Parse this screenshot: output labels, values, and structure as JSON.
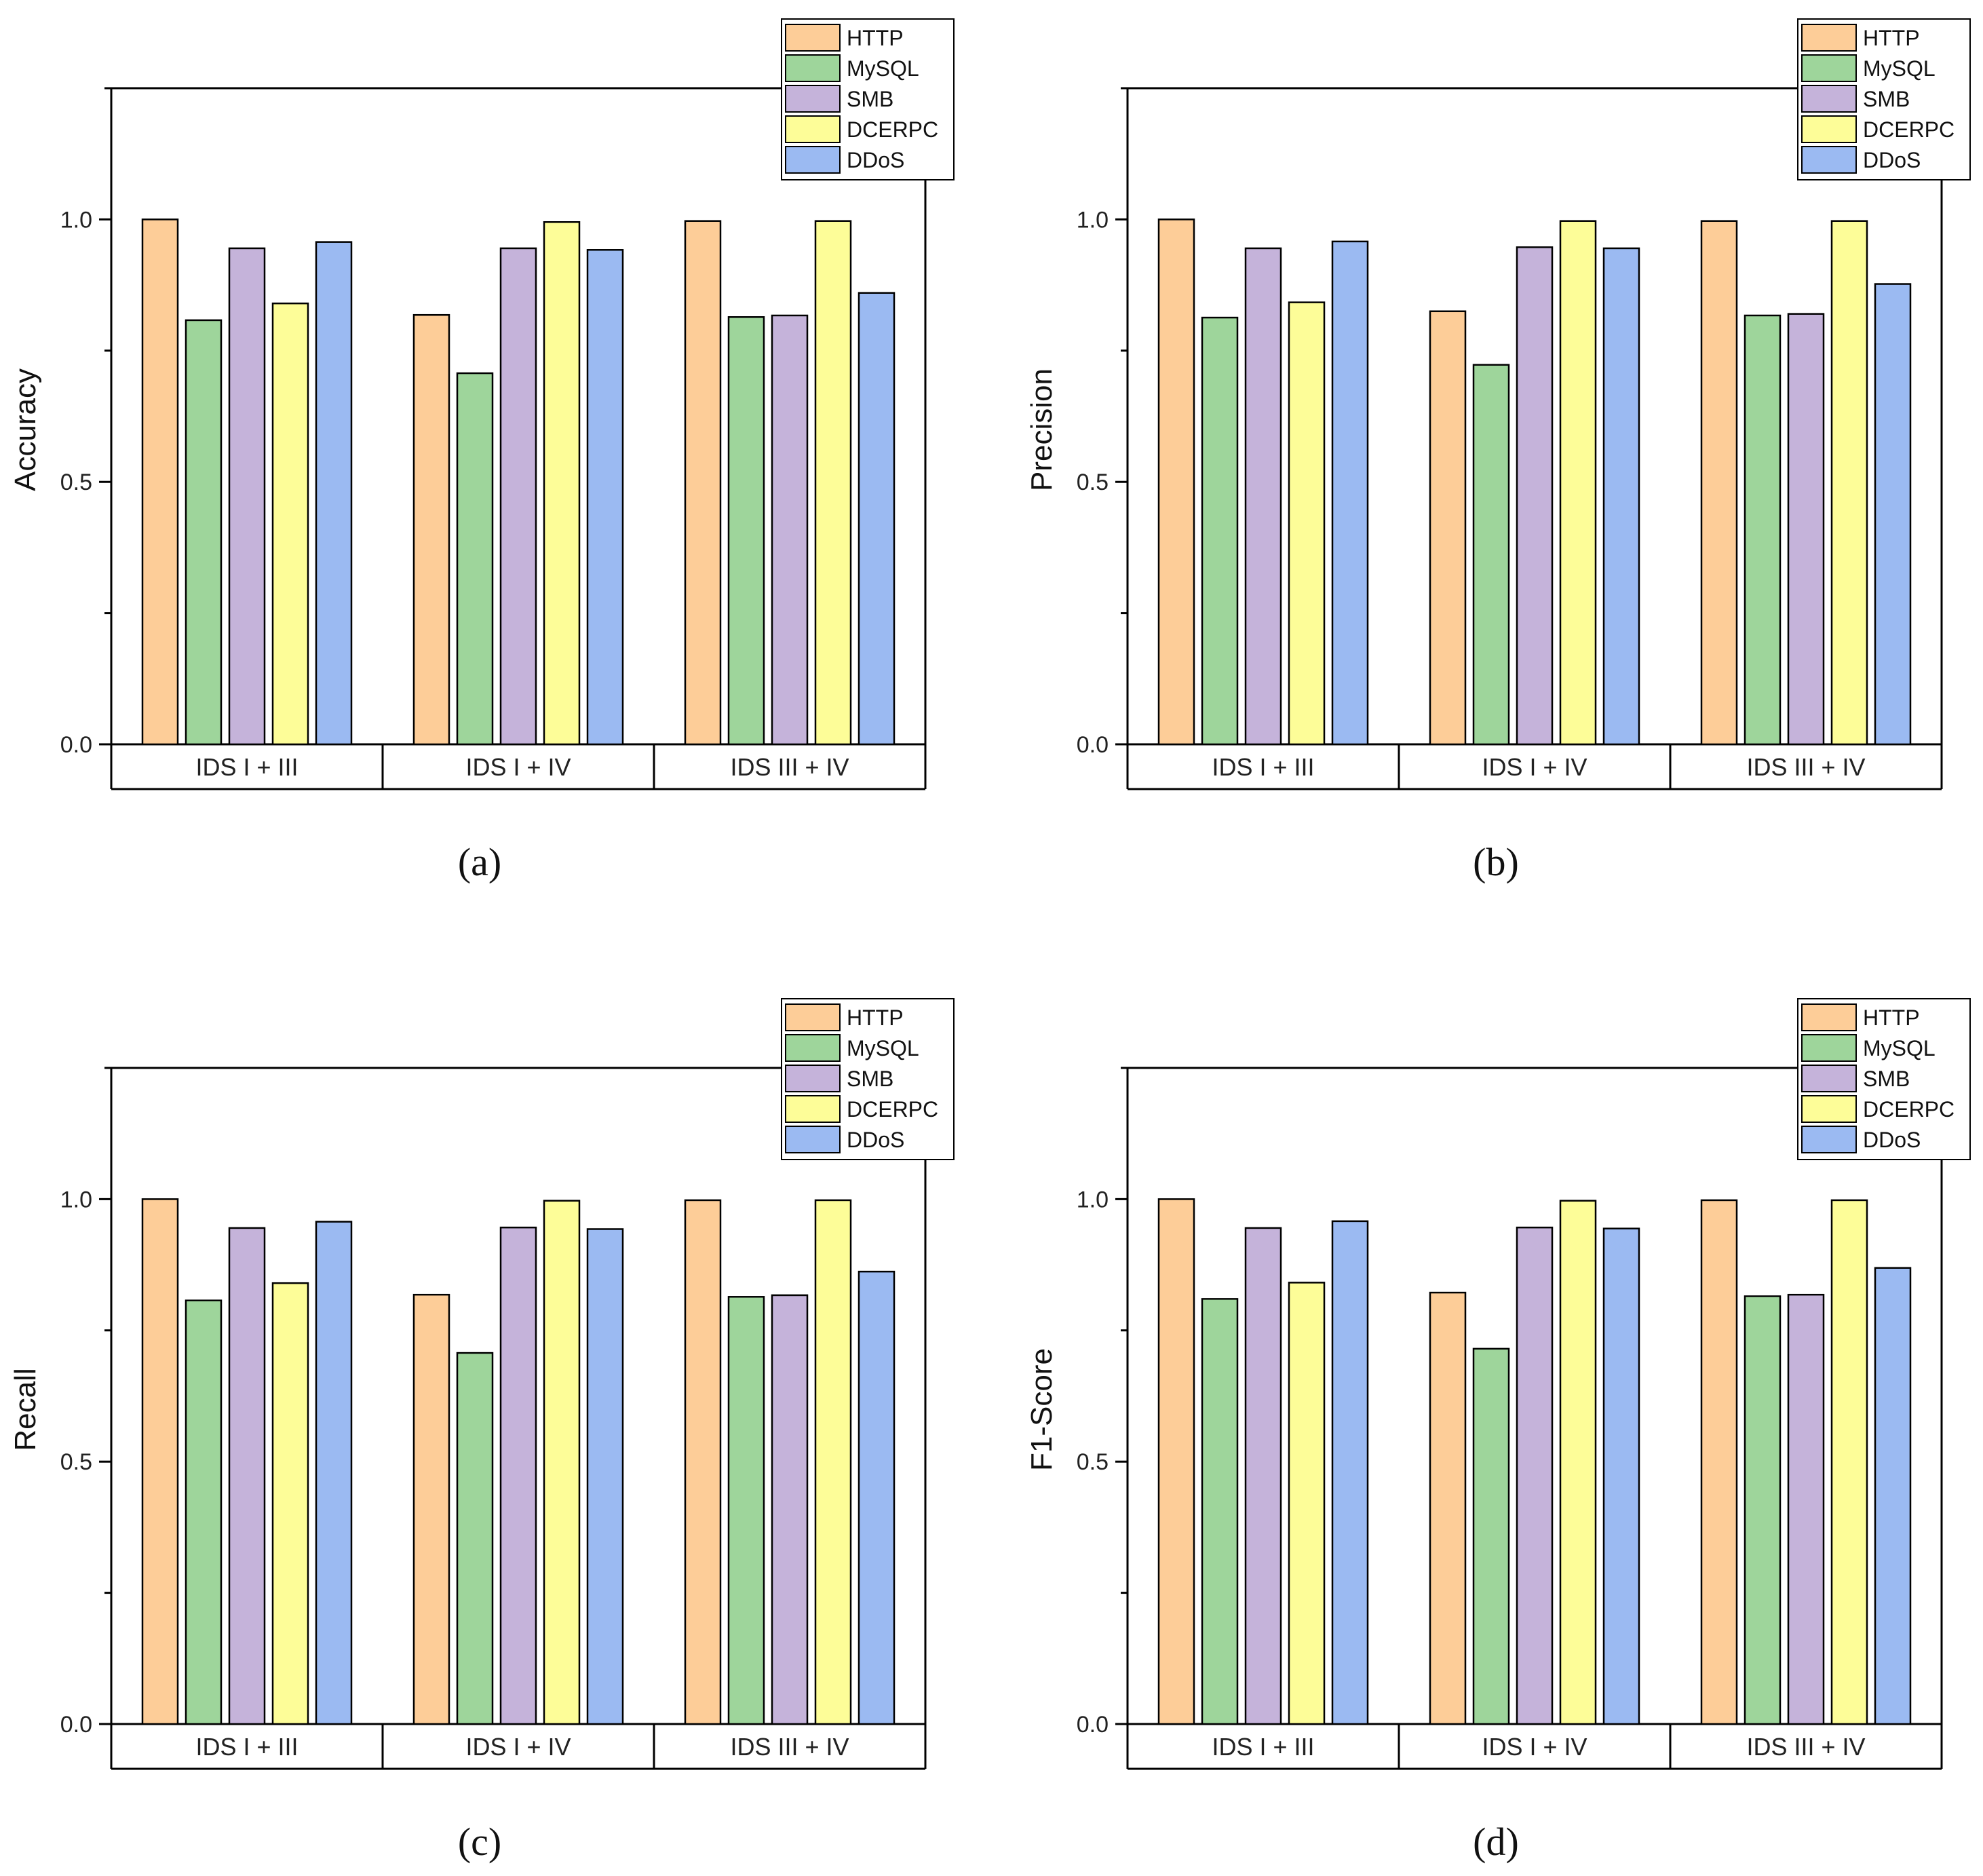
{
  "chart_data": [
    {
      "type": "bar",
      "caption": "(a)",
      "ylabel": "Accuracy",
      "ylim": [
        0,
        1.25
      ],
      "yticks": [
        "0.0",
        "0.5",
        "1.0"
      ],
      "categories": [
        "IDS I + III",
        "IDS I + IV",
        "IDS III + IV"
      ],
      "series": [
        {
          "name": "HTTP",
          "values": [
            1.0,
            0.818,
            0.997
          ]
        },
        {
          "name": "MySQL",
          "values": [
            0.808,
            0.707,
            0.814
          ]
        },
        {
          "name": "SMB",
          "values": [
            0.945,
            0.945,
            0.817
          ]
        },
        {
          "name": "DCERPC",
          "values": [
            0.84,
            0.995,
            0.997
          ]
        },
        {
          "name": "DDoS",
          "values": [
            0.957,
            0.942,
            0.86
          ]
        }
      ],
      "legend": "top-right"
    },
    {
      "type": "bar",
      "caption": "(b)",
      "ylabel": "Precision",
      "ylim": [
        0,
        1.25
      ],
      "yticks": [
        "0.0",
        "0.5",
        "1.0"
      ],
      "categories": [
        "IDS I + III",
        "IDS I + IV",
        "IDS III + IV"
      ],
      "series": [
        {
          "name": "HTTP",
          "values": [
            1.0,
            0.825,
            0.997
          ]
        },
        {
          "name": "MySQL",
          "values": [
            0.813,
            0.723,
            0.817
          ]
        },
        {
          "name": "SMB",
          "values": [
            0.945,
            0.947,
            0.82
          ]
        },
        {
          "name": "DCERPC",
          "values": [
            0.842,
            0.997,
            0.997
          ]
        },
        {
          "name": "DDoS",
          "values": [
            0.958,
            0.945,
            0.877
          ]
        }
      ],
      "legend": "top-right"
    },
    {
      "type": "bar",
      "caption": "(c)",
      "ylabel": "Recall",
      "ylim": [
        0,
        1.25
      ],
      "yticks": [
        "0.0",
        "0.5",
        "1.0"
      ],
      "categories": [
        "IDS I + III",
        "IDS I + IV",
        "IDS III + IV"
      ],
      "series": [
        {
          "name": "HTTP",
          "values": [
            1.0,
            0.818,
            0.998
          ]
        },
        {
          "name": "MySQL",
          "values": [
            0.807,
            0.707,
            0.814
          ]
        },
        {
          "name": "SMB",
          "values": [
            0.945,
            0.946,
            0.817
          ]
        },
        {
          "name": "DCERPC",
          "values": [
            0.84,
            0.997,
            0.998
          ]
        },
        {
          "name": "DDoS",
          "values": [
            0.957,
            0.943,
            0.862
          ]
        }
      ],
      "legend": "top-right"
    },
    {
      "type": "bar",
      "caption": "(d)",
      "ylabel": "F1-Score",
      "ylim": [
        0,
        1.25
      ],
      "yticks": [
        "0.0",
        "0.5",
        "1.0"
      ],
      "categories": [
        "IDS I + III",
        "IDS I + IV",
        "IDS III + IV"
      ],
      "series": [
        {
          "name": "HTTP",
          "values": [
            1.0,
            0.822,
            0.998
          ]
        },
        {
          "name": "MySQL",
          "values": [
            0.81,
            0.715,
            0.815
          ]
        },
        {
          "name": "SMB",
          "values": [
            0.945,
            0.946,
            0.818
          ]
        },
        {
          "name": "DCERPC",
          "values": [
            0.841,
            0.997,
            0.998
          ]
        },
        {
          "name": "DDoS",
          "values": [
            0.958,
            0.944,
            0.869
          ]
        }
      ],
      "legend": "top-right"
    }
  ],
  "colors": {
    "HTTP": "#FDCD98",
    "MySQL": "#9ED59B",
    "SMB": "#C5B3DA",
    "DCERPC": "#FDFD98",
    "DDoS": "#9BBAF2"
  }
}
